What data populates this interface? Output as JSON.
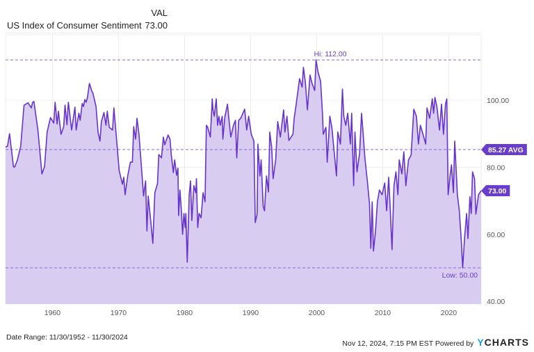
{
  "header": {
    "column_label": "VAL",
    "series_name": "US Index of Consumer Sentiment",
    "series_value": "73.00"
  },
  "footer": {
    "date_range": "Date Range: 11/30/1952 - 11/30/2024",
    "timestamp": "Nov 12, 2024, 7:15 PM EST Powered by",
    "logo_text": "YCHARTS"
  },
  "colors": {
    "line": "#6633cc",
    "fill": "#d9ccf1",
    "tag": "#6a3ccc",
    "grid": "#ececec",
    "logo_accent": "#1aa3e8"
  },
  "chart_data": {
    "type": "area",
    "title": "",
    "xlabel": "",
    "ylabel": "",
    "xlim": [
      1952.9,
      2024.9
    ],
    "ylim": [
      39.2,
      119.5
    ],
    "y_axis_side": "right",
    "grid": true,
    "x_ticks": [
      "1960",
      "1970",
      "1980",
      "1990",
      "2000",
      "2010",
      "2020"
    ],
    "x_tick_values": [
      1960,
      1970,
      1980,
      1990,
      2000,
      2010,
      2020
    ],
    "y_ticks": [
      "100.00",
      "80.00",
      "60.00",
      "40.00"
    ],
    "y_tick_values": [
      100,
      80,
      60,
      40
    ],
    "reference_lines": {
      "high": {
        "value": 112.0,
        "label": "Hi: 112.00"
      },
      "average": {
        "value": 85.27,
        "label": "85.27 AVG"
      },
      "low": {
        "value": 50.0,
        "label": "Low: 50.00"
      }
    },
    "last_value": {
      "value": 73.0,
      "label": "73.00"
    },
    "series": [
      {
        "points": [
          [
            1952.9,
            86.0
          ],
          [
            1953.2,
            86.3
          ],
          [
            1953.5,
            90.0
          ],
          [
            1954.1,
            80.1
          ],
          [
            1954.3,
            80.1
          ],
          [
            1954.7,
            82.2
          ],
          [
            1955.2,
            86.3
          ],
          [
            1955.6,
            96.1
          ],
          [
            1955.7,
            98.5
          ],
          [
            1956.3,
            99.2
          ],
          [
            1956.8,
            97.7
          ],
          [
            1957.0,
            99.4
          ],
          [
            1957.2,
            99.6
          ],
          [
            1957.8,
            91.1
          ],
          [
            1958.4,
            78.0
          ],
          [
            1958.8,
            80.1
          ],
          [
            1959.2,
            90.5
          ],
          [
            1959.7,
            94.8
          ],
          [
            1960.2,
            93.2
          ],
          [
            1960.4,
            99.4
          ],
          [
            1960.7,
            92.9
          ],
          [
            1960.9,
            96.7
          ],
          [
            1961.3,
            89.8
          ],
          [
            1961.7,
            92.1
          ],
          [
            1961.9,
            98.5
          ],
          [
            1962.2,
            92.7
          ],
          [
            1962.4,
            99.4
          ],
          [
            1962.9,
            91.1
          ],
          [
            1963.4,
            97.9
          ],
          [
            1963.6,
            91.1
          ],
          [
            1964.0,
            96.1
          ],
          [
            1964.2,
            94.0
          ],
          [
            1964.5,
            99.0
          ],
          [
            1964.7,
            98.1
          ],
          [
            1964.9,
            100.2
          ],
          [
            1965.1,
            99.4
          ],
          [
            1965.3,
            100.8
          ],
          [
            1965.6,
            105.0
          ],
          [
            1966.0,
            102.5
          ],
          [
            1966.1,
            102.3
          ],
          [
            1966.6,
            98.1
          ],
          [
            1966.9,
            90.5
          ],
          [
            1967.2,
            87.8
          ],
          [
            1967.4,
            93.6
          ],
          [
            1967.8,
            96.3
          ],
          [
            1968.1,
            92.5
          ],
          [
            1968.3,
            96.7
          ],
          [
            1968.6,
            91.9
          ],
          [
            1969.1,
            91.1
          ],
          [
            1969.3,
            97.7
          ],
          [
            1970.1,
            79.0
          ],
          [
            1970.6,
            74.9
          ],
          [
            1970.8,
            77.0
          ],
          [
            1971.0,
            71.8
          ],
          [
            1971.4,
            77.4
          ],
          [
            1971.8,
            81.5
          ],
          [
            1972.1,
            81.5
          ],
          [
            1972.3,
            92.1
          ],
          [
            1972.6,
            88.4
          ],
          [
            1972.8,
            94.6
          ],
          [
            1973.1,
            89.8
          ],
          [
            1973.8,
            71.4
          ],
          [
            1974.1,
            75.9
          ],
          [
            1974.3,
            61.0
          ],
          [
            1974.5,
            71.4
          ],
          [
            1974.9,
            63.5
          ],
          [
            1975.2,
            57.3
          ],
          [
            1975.5,
            72.4
          ],
          [
            1975.9,
            75.1
          ],
          [
            1976.1,
            83.8
          ],
          [
            1976.5,
            82.8
          ],
          [
            1976.8,
            89.0
          ],
          [
            1977.0,
            86.7
          ],
          [
            1977.5,
            89.6
          ],
          [
            1977.8,
            88.4
          ],
          [
            1978.0,
            83.6
          ],
          [
            1978.3,
            78.4
          ],
          [
            1978.5,
            82.2
          ],
          [
            1978.8,
            77.6
          ],
          [
            1979.0,
            79.7
          ],
          [
            1979.1,
            65.6
          ],
          [
            1979.3,
            73.2
          ],
          [
            1979.5,
            67.6
          ],
          [
            1979.7,
            60.0
          ],
          [
            1979.9,
            66.2
          ],
          [
            1980.1,
            62.0
          ],
          [
            1980.2,
            66.2
          ],
          [
            1980.4,
            51.7
          ],
          [
            1980.7,
            71.8
          ],
          [
            1980.9,
            75.9
          ],
          [
            1981.1,
            64.1
          ],
          [
            1981.4,
            74.5
          ],
          [
            1981.7,
            72.4
          ],
          [
            1981.8,
            76.6
          ],
          [
            1982.0,
            62.0
          ],
          [
            1982.2,
            66.2
          ],
          [
            1982.5,
            64.9
          ],
          [
            1982.8,
            72.4
          ],
          [
            1983.1,
            69.7
          ],
          [
            1983.3,
            92.5
          ],
          [
            1983.5,
            91.9
          ],
          [
            1983.9,
            89.0
          ],
          [
            1984.2,
            100.4
          ],
          [
            1984.3,
            97.1
          ],
          [
            1984.5,
            95.2
          ],
          [
            1984.8,
            100.4
          ],
          [
            1985.0,
            92.5
          ],
          [
            1985.2,
            95.2
          ],
          [
            1985.4,
            92.5
          ],
          [
            1985.7,
            95.2
          ],
          [
            1985.8,
            88.4
          ],
          [
            1986.1,
            95.0
          ],
          [
            1986.5,
            98.8
          ],
          [
            1986.7,
            94.6
          ],
          [
            1987.0,
            89.0
          ],
          [
            1987.4,
            92.5
          ],
          [
            1987.7,
            94.0
          ],
          [
            1987.9,
            82.8
          ],
          [
            1988.2,
            94.0
          ],
          [
            1988.5,
            94.6
          ],
          [
            1989.1,
            97.3
          ],
          [
            1989.4,
            91.1
          ],
          [
            1989.7,
            95.2
          ],
          [
            1990.1,
            89.8
          ],
          [
            1990.5,
            87.8
          ],
          [
            1990.7,
            63.5
          ],
          [
            1991.0,
            66.2
          ],
          [
            1991.1,
            86.9
          ],
          [
            1991.4,
            77.4
          ],
          [
            1991.6,
            82.2
          ],
          [
            1991.9,
            68.3
          ],
          [
            1992.1,
            67.0
          ],
          [
            1992.4,
            77.4
          ],
          [
            1992.7,
            72.6
          ],
          [
            1992.9,
            90.5
          ],
          [
            1993.2,
            85.7
          ],
          [
            1993.4,
            76.6
          ],
          [
            1993.8,
            82.2
          ],
          [
            1994.1,
            93.6
          ],
          [
            1994.5,
            89.0
          ],
          [
            1995.0,
            97.1
          ],
          [
            1995.2,
            90.5
          ],
          [
            1995.5,
            95.2
          ],
          [
            1995.8,
            88.0
          ],
          [
            1996.4,
            89.8
          ],
          [
            1996.6,
            94.6
          ],
          [
            1996.9,
            98.8
          ],
          [
            1997.4,
            106.4
          ],
          [
            1997.8,
            103.9
          ],
          [
            1998.0,
            109.8
          ],
          [
            1998.3,
            105.0
          ],
          [
            1998.6,
            97.1
          ],
          [
            1999.0,
            107.5
          ],
          [
            1999.3,
            105.0
          ],
          [
            1999.7,
            102.9
          ],
          [
            1999.9,
            112.0
          ],
          [
            2000.2,
            108.5
          ],
          [
            2000.6,
            105.6
          ],
          [
            2000.9,
            95.2
          ],
          [
            2001.0,
            89.8
          ],
          [
            2001.4,
            91.9
          ],
          [
            2001.6,
            81.5
          ],
          [
            2002.0,
            95.2
          ],
          [
            2002.3,
            91.9
          ],
          [
            2002.6,
            85.7
          ],
          [
            2003.0,
            77.4
          ],
          [
            2003.2,
            90.5
          ],
          [
            2003.6,
            86.9
          ],
          [
            2003.9,
            103.3
          ],
          [
            2004.1,
            95.2
          ],
          [
            2004.4,
            92.5
          ],
          [
            2004.7,
            96.1
          ],
          [
            2005.1,
            86.9
          ],
          [
            2005.3,
            96.1
          ],
          [
            2005.6,
            74.5
          ],
          [
            2005.8,
            90.5
          ],
          [
            2006.1,
            78.6
          ],
          [
            2006.5,
            84.2
          ],
          [
            2006.8,
            96.1
          ],
          [
            2007.0,
            91.1
          ],
          [
            2007.3,
            82.8
          ],
          [
            2007.7,
            75.3
          ],
          [
            2008.0,
            69.1
          ],
          [
            2008.2,
            55.8
          ],
          [
            2008.4,
            69.7
          ],
          [
            2008.6,
            55.0
          ],
          [
            2008.9,
            60.8
          ],
          [
            2009.2,
            69.7
          ],
          [
            2009.5,
            73.2
          ],
          [
            2009.9,
            71.8
          ],
          [
            2010.3,
            75.3
          ],
          [
            2010.6,
            67.0
          ],
          [
            2010.9,
            77.0
          ],
          [
            2011.1,
            69.1
          ],
          [
            2011.4,
            55.4
          ],
          [
            2011.7,
            74.5
          ],
          [
            2012.0,
            78.6
          ],
          [
            2012.3,
            71.8
          ],
          [
            2012.5,
            82.2
          ],
          [
            2012.9,
            78.0
          ],
          [
            2013.2,
            84.6
          ],
          [
            2013.5,
            74.5
          ],
          [
            2013.9,
            82.2
          ],
          [
            2014.3,
            83.6
          ],
          [
            2014.7,
            97.3
          ],
          [
            2015.1,
            95.2
          ],
          [
            2015.4,
            86.9
          ],
          [
            2015.7,
            92.5
          ],
          [
            2016.1,
            89.8
          ],
          [
            2016.5,
            86.9
          ],
          [
            2016.7,
            97.7
          ],
          [
            2017.1,
            94.6
          ],
          [
            2017.5,
            100.4
          ],
          [
            2017.7,
            96.1
          ],
          [
            2017.9,
            100.8
          ],
          [
            2018.2,
            98.1
          ],
          [
            2018.6,
            91.1
          ],
          [
            2018.9,
            98.8
          ],
          [
            2019.2,
            89.8
          ],
          [
            2019.5,
            98.8
          ],
          [
            2019.7,
            100.4
          ],
          [
            2019.9,
            71.8
          ],
          [
            2020.2,
            77.4
          ],
          [
            2020.4,
            80.7
          ],
          [
            2020.7,
            72.4
          ],
          [
            2020.9,
            87.8
          ],
          [
            2021.3,
            71.8
          ],
          [
            2021.6,
            67.0
          ],
          [
            2021.9,
            57.9
          ],
          [
            2022.1,
            50.0
          ],
          [
            2022.4,
            59.3
          ],
          [
            2022.7,
            66.2
          ],
          [
            2022.9,
            58.7
          ],
          [
            2023.2,
            71.2
          ],
          [
            2023.4,
            66.2
          ],
          [
            2023.6,
            78.6
          ],
          [
            2023.9,
            76.6
          ],
          [
            2024.1,
            66.0
          ],
          [
            2024.5,
            71.8
          ],
          [
            2024.9,
            73.0
          ]
        ]
      }
    ]
  }
}
